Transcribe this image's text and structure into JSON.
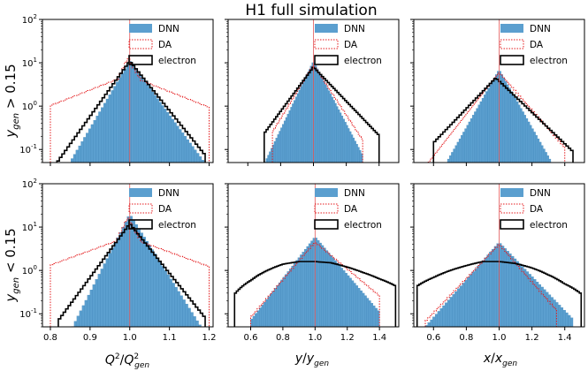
{
  "figure": {
    "title": "H1 full simulation"
  },
  "colors": {
    "dnn": "#5b9fcf",
    "dnn_edge": "#3f86ba",
    "da": "#e41a1c",
    "electron": "#000000",
    "ref_line": "#e15759"
  },
  "chart_data": [
    {
      "id": "q2-high-y",
      "row": 0,
      "col": 0,
      "type": "histogram",
      "row_label": "y_gen > 0.15",
      "xlim": [
        0.78,
        1.21
      ],
      "ylim_log": [
        0.05,
        100
      ],
      "ref_x": 1.0,
      "xticks": [],
      "yticks": [
        "10^-1",
        "10^0",
        "10^1",
        "10^2"
      ],
      "legend": [
        "DNN",
        "DA",
        "electron"
      ],
      "series": [
        {
          "name": "DNN",
          "style": "filled",
          "range": [
            0.82,
            1.2
          ],
          "peak": 1.0,
          "amp": 11,
          "w_left": 0.028,
          "w_right": 0.035,
          "floor": 0.05
        },
        {
          "name": "DA",
          "style": "dotted-step",
          "range": [
            0.8,
            1.2
          ],
          "peak": 0.995,
          "amp": 13,
          "w_left": 0.022,
          "w_right": 0.028,
          "shoulder": 0.4,
          "shoulder_scale": 0.12,
          "edge_val": 0.2
        },
        {
          "name": "electron",
          "style": "step",
          "range": [
            0.81,
            1.19
          ],
          "peak": 1.0,
          "amp": 11,
          "w_left": 0.034,
          "w_right": 0.038,
          "floor": 0.05
        }
      ]
    },
    {
      "id": "y-high-y",
      "row": 0,
      "col": 1,
      "type": "histogram",
      "xlim": [
        0.48,
        1.52
      ],
      "ylim_log": [
        0.05,
        100
      ],
      "ref_x": 1.0,
      "xticks": [],
      "yticks": [],
      "legend": [
        "DNN",
        "DA",
        "electron"
      ],
      "series": [
        {
          "name": "DNN",
          "style": "filled",
          "range": [
            0.7,
            1.3
          ],
          "peak": 1.0,
          "amp": 11,
          "w_left": 0.055,
          "w_right": 0.06,
          "floor": 0.05
        },
        {
          "name": "DA",
          "style": "dotted-step",
          "range": [
            0.75,
            1.3
          ],
          "peak": 1.0,
          "amp": 9,
          "w_left": 0.07,
          "w_right": 0.075,
          "floor": 0.05
        },
        {
          "name": "electron",
          "style": "step",
          "range": [
            0.7,
            1.4
          ],
          "peak": 1.0,
          "amp": 8,
          "w_left": 0.085,
          "w_right": 0.11,
          "floor": 0.05
        }
      ]
    },
    {
      "id": "x-high-y",
      "row": 0,
      "col": 2,
      "type": "histogram",
      "xlim": [
        0.48,
        1.52
      ],
      "ylim_log": [
        0.05,
        100
      ],
      "ref_x": 1.0,
      "xticks": [],
      "yticks": [],
      "legend": [
        "DNN",
        "DA",
        "electron"
      ],
      "series": [
        {
          "name": "DNN",
          "style": "filled",
          "range": [
            0.65,
            1.35
          ],
          "peak": 1.0,
          "amp": 7,
          "w_left": 0.065,
          "w_right": 0.065,
          "floor": 0.05
        },
        {
          "name": "DA",
          "style": "dotted-step",
          "range": [
            0.55,
            1.4
          ],
          "peak": 1.0,
          "amp": 6,
          "w_left": 0.09,
          "w_right": 0.1,
          "floor": 0.05
        },
        {
          "name": "electron",
          "style": "step",
          "range": [
            0.6,
            1.45
          ],
          "peak": 0.98,
          "amp": 4.5,
          "w_left": 0.11,
          "w_right": 0.12,
          "floor": 0.05
        }
      ]
    },
    {
      "id": "q2-low-y",
      "row": 1,
      "col": 0,
      "type": "histogram",
      "row_label": "y_gen < 0.15",
      "xlim": [
        0.78,
        1.21
      ],
      "ylim_log": [
        0.05,
        100
      ],
      "ref_x": 1.0,
      "xlabel": "Q^2/Q^2_gen",
      "xticks": [
        "0.8",
        "0.9",
        "1.0",
        "1.1",
        "1.2"
      ],
      "yticks": [
        "10^-1",
        "10^0",
        "10^1",
        "10^2"
      ],
      "legend": [
        "DNN",
        "DA",
        "electron"
      ],
      "series": [
        {
          "name": "DNN",
          "style": "filled",
          "range": [
            0.8,
            1.2
          ],
          "peak": 1.0,
          "amp": 20,
          "w_left": 0.024,
          "w_right": 0.03,
          "floor": 0.05
        },
        {
          "name": "DA",
          "style": "dotted-step",
          "range": [
            0.8,
            1.2
          ],
          "peak": 0.995,
          "amp": 17,
          "w_left": 0.022,
          "w_right": 0.026,
          "shoulder": 0.35,
          "shoulder_scale": 0.13,
          "edge_val": 0.2
        },
        {
          "name": "electron",
          "style": "step",
          "range": [
            0.82,
            1.19
          ],
          "peak": 1.0,
          "amp": 12,
          "w_left": 0.035,
          "w_right": 0.038,
          "floor": 0.05
        }
      ]
    },
    {
      "id": "y-low-y",
      "row": 1,
      "col": 1,
      "type": "histogram",
      "xlim": [
        0.46,
        1.52
      ],
      "ylim_log": [
        0.05,
        100
      ],
      "ref_x": 1.0,
      "xlabel": "y/y_gen",
      "xticks": [
        "0.6",
        "0.8",
        "1.0",
        "1.2",
        "1.4"
      ],
      "yticks": [],
      "legend": [
        "DNN",
        "DA",
        "electron"
      ],
      "series": [
        {
          "name": "DNN",
          "style": "filled",
          "range": [
            0.6,
            1.4
          ],
          "peak": 1.0,
          "amp": 6,
          "w_left": 0.09,
          "w_right": 0.1,
          "floor": 0.05
        },
        {
          "name": "DA",
          "style": "dotted-step",
          "range": [
            0.6,
            1.4
          ],
          "peak": 1.0,
          "amp": 4.5,
          "w_left": 0.1,
          "w_right": 0.14,
          "floor": 0.05
        },
        {
          "name": "electron",
          "style": "flat-step",
          "range": [
            0.5,
            1.5
          ],
          "values": [
            0.3,
            0.6,
            1.0,
            1.4,
            1.6,
            1.6,
            1.5,
            1.2,
            0.9,
            0.65,
            0.45
          ]
        }
      ]
    },
    {
      "id": "x-low-y",
      "row": 1,
      "col": 2,
      "type": "histogram",
      "xlim": [
        0.48,
        1.52
      ],
      "ylim_log": [
        0.05,
        100
      ],
      "ref_x": 1.0,
      "xlabel": "x/x_gen",
      "xticks": [
        "0.6",
        "0.8",
        "1.0",
        "1.2",
        "1.4"
      ],
      "yticks": [],
      "legend": [
        "DNN",
        "DA",
        "electron"
      ],
      "series": [
        {
          "name": "DNN",
          "style": "filled",
          "range": [
            0.55,
            1.45
          ],
          "peak": 1.0,
          "amp": 4.5,
          "w_left": 0.1,
          "w_right": 0.11,
          "floor": 0.05
        },
        {
          "name": "DA",
          "style": "dotted-step",
          "range": [
            0.55,
            1.35
          ],
          "peak": 1.0,
          "amp": 4,
          "w_left": 0.11,
          "w_right": 0.1,
          "floor": 0.05
        },
        {
          "name": "electron",
          "style": "flat-step",
          "range": [
            0.5,
            1.5
          ],
          "values": [
            0.45,
            0.7,
            1.0,
            1.3,
            1.6,
            1.6,
            1.45,
            1.15,
            0.8,
            0.5,
            0.3
          ]
        }
      ]
    }
  ]
}
